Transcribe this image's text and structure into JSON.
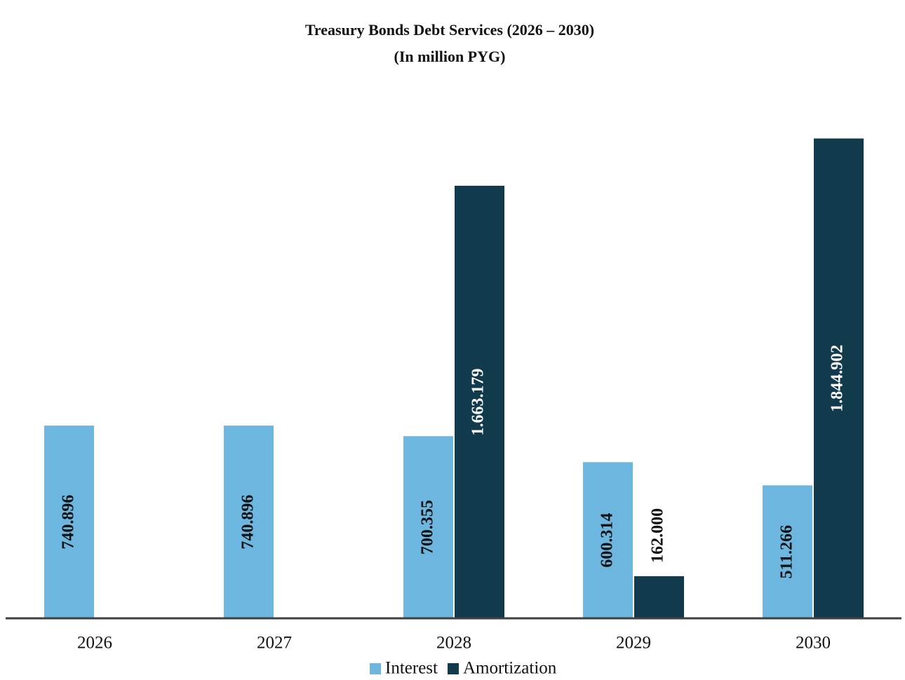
{
  "chart_data": {
    "type": "bar",
    "title": "Treasury Bonds Debt Services (2026 – 2030)",
    "subtitle": "(In million PYG)",
    "categories": [
      "2026",
      "2027",
      "2028",
      "2029",
      "2030"
    ],
    "series": [
      {
        "name": "Interest",
        "color": "#6cb6e0",
        "values": [
          740896,
          740896,
          700355,
          600314,
          511266
        ],
        "value_labels": [
          "740.896",
          "740.896",
          "700.355",
          "600.314",
          "511.266"
        ]
      },
      {
        "name": "Amortization",
        "color": "#113b4d",
        "values": [
          null,
          null,
          1663179,
          162000,
          1844902
        ],
        "value_labels": [
          null,
          null,
          "1.663.179",
          "162.000",
          "1.844.902"
        ]
      }
    ],
    "ylim": [
      0,
      2000000
    ],
    "grid": false,
    "legend": "bottom"
  }
}
